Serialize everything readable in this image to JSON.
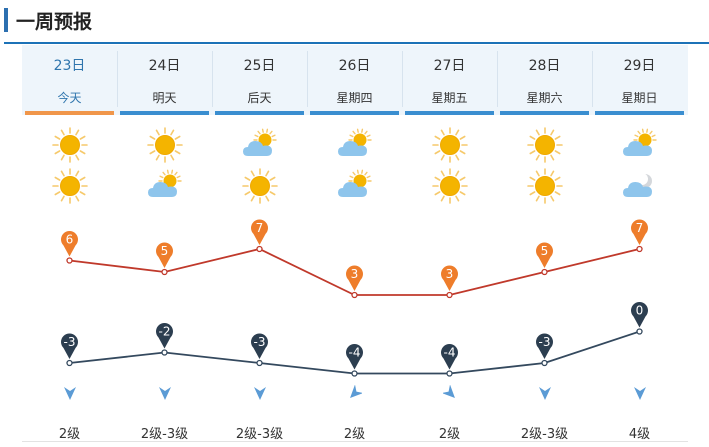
{
  "title": "一周预报",
  "days": [
    {
      "date": "23日",
      "weekday": "今天",
      "day_icon": "sun-icon",
      "night_icon": "sun-icon",
      "high": 6,
      "low": -3,
      "wind_dir": "south-wind-icon",
      "wind_level": "2级"
    },
    {
      "date": "24日",
      "weekday": "明天",
      "day_icon": "sun-icon",
      "night_icon": "partly-cloudy-icon",
      "high": 5,
      "low": -2,
      "wind_dir": "south-wind-icon",
      "wind_level": "2级-3级"
    },
    {
      "date": "25日",
      "weekday": "后天",
      "day_icon": "partly-cloudy-icon",
      "night_icon": "sun-icon",
      "high": 7,
      "low": -3,
      "wind_dir": "south-wind-icon",
      "wind_level": "2级-3级"
    },
    {
      "date": "26日",
      "weekday": "星期四",
      "day_icon": "partly-cloudy-icon",
      "night_icon": "partly-cloudy-icon",
      "high": 3,
      "low": -4,
      "wind_dir": "southwest-wind-icon",
      "wind_level": "2级"
    },
    {
      "date": "27日",
      "weekday": "星期五",
      "day_icon": "sun-icon",
      "night_icon": "sun-icon",
      "high": 3,
      "low": -4,
      "wind_dir": "southeast-wind-icon",
      "wind_level": "2级"
    },
    {
      "date": "28日",
      "weekday": "星期六",
      "day_icon": "sun-icon",
      "night_icon": "sun-icon",
      "high": 5,
      "low": -3,
      "wind_dir": "south-wind-icon",
      "wind_level": "2级-3级"
    },
    {
      "date": "29日",
      "weekday": "星期日",
      "day_icon": "partly-cloudy-icon",
      "night_icon": "cloudy-moon-icon",
      "high": 7,
      "low": 0,
      "wind_dir": "south-wind-icon",
      "wind_level": "4级"
    }
  ],
  "chart_data": {
    "type": "line",
    "categories": [
      "23日",
      "24日",
      "25日",
      "26日",
      "27日",
      "28日",
      "29日"
    ],
    "series": [
      {
        "values": [
          6,
          5,
          7,
          3,
          3,
          5,
          7
        ]
      },
      {
        "values": [
          -3,
          -2,
          -3,
          -4,
          -4,
          -3,
          0
        ]
      }
    ]
  },
  "colors": {
    "accent": "#2c6fb0",
    "today": "#f0964a",
    "high_line": "#c0392b",
    "high_marker": "#ee7d2b",
    "low_line": "#34495e",
    "low_marker": "#2c3e50",
    "wind": "#5b9bd5"
  }
}
